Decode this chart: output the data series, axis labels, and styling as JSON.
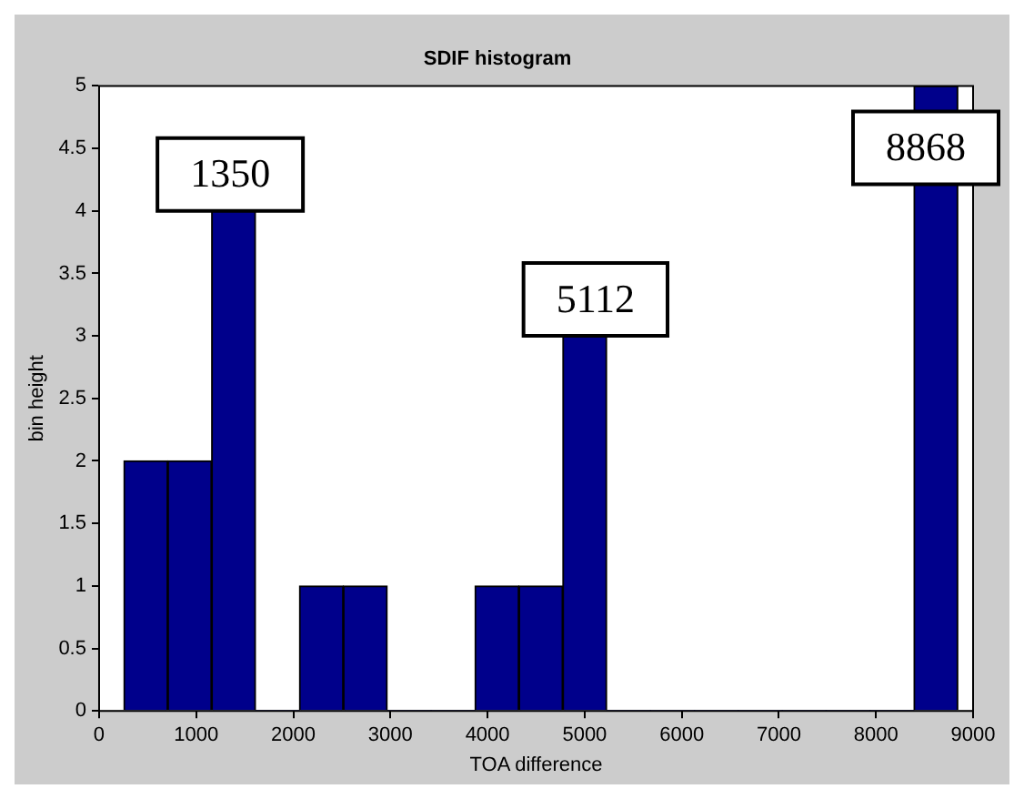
{
  "chart_data": {
    "type": "histogram",
    "title": "SDIF histogram",
    "xlabel": "TOA difference",
    "ylabel": "bin height",
    "bins": [
      255,
      707,
      1159,
      1611,
      2063,
      2515,
      2967,
      3419,
      3871,
      4323,
      4775,
      5227,
      5679,
      6131,
      6583,
      7035,
      7487,
      7939,
      8391,
      8843
    ],
    "values": [
      2,
      2,
      4,
      0,
      1,
      1,
      0,
      0,
      1,
      1,
      3,
      0,
      0,
      0,
      0,
      0,
      0,
      0,
      5
    ],
    "color": "#00008b",
    "xlim": [
      0,
      9000
    ],
    "xticks": [
      0,
      1000,
      2000,
      3000,
      4000,
      5000,
      6000,
      7000,
      8000,
      9000
    ],
    "ylim": [
      0,
      5
    ],
    "yticks": [
      0,
      0.5,
      1,
      1.5,
      2,
      2.5,
      3,
      3.5,
      4,
      4.5,
      5
    ],
    "annotations": [
      {
        "text": "1350",
        "x": 1350,
        "y": 4
      },
      {
        "text": "5112",
        "x": 5112,
        "y": 3
      },
      {
        "text": "8868",
        "x": 8868,
        "y": 5
      }
    ]
  }
}
